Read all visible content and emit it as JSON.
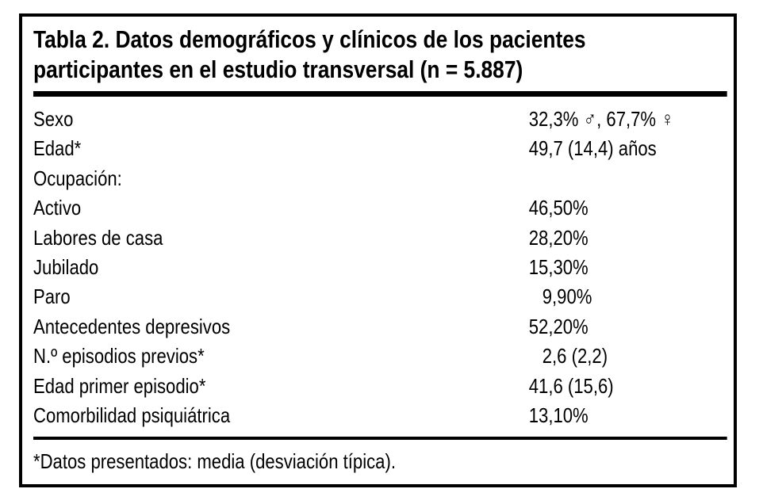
{
  "table": {
    "caption_label": "Tabla 2.",
    "title_line1": "Tabla 2. Datos demográficos y clínicos de los pacientes",
    "title_line2": "participantes en el estudio transversal (n = 5.887)",
    "sample_size": "5.887",
    "rows": [
      {
        "label": "Sexo",
        "value": "32,3% ♂, 67,7% ♀"
      },
      {
        "label": "Edad*",
        "value": "49,7 (14,4) años"
      },
      {
        "label": "Ocupación:",
        "value": ""
      },
      {
        "label": "Activo",
        "value": "46,50%"
      },
      {
        "label": "Labores de casa",
        "value": "28,20%"
      },
      {
        "label": "Jubilado",
        "value": "15,30%"
      },
      {
        "label": "Paro",
        "value": "9,90%"
      },
      {
        "label": "Antecedentes depresivos",
        "value": "52,20%"
      },
      {
        "label": "N.º episodios previos*",
        "value": "2,6 (2,2)"
      },
      {
        "label": "Edad primer episodio*",
        "value": "41,6 (15,6)"
      },
      {
        "label": "Comorbilidad psiquiátrica",
        "value": "13,10%"
      }
    ],
    "footnote": "*Datos presentados: media (desviación típica)."
  },
  "chart_data": {
    "type": "table",
    "title": "Tabla 2. Datos demográficos y clínicos de los pacientes participantes en el estudio transversal (n = 5.887)",
    "rows": [
      [
        "Sexo",
        "32,3% ♂, 67,7% ♀"
      ],
      [
        "Edad*",
        "49,7 (14,4) años"
      ],
      [
        "Ocupación:",
        ""
      ],
      [
        "Activo",
        "46,50%"
      ],
      [
        "Labores de casa",
        "28,20%"
      ],
      [
        "Jubilado",
        "15,30%"
      ],
      [
        "Paro",
        "9,90%"
      ],
      [
        "Antecedentes depresivos",
        "52,20%"
      ],
      [
        "N.º episodios previos*",
        "2,6 (2,2)"
      ],
      [
        "Edad primer episodio*",
        "41,6 (15,6)"
      ],
      [
        "Comorbilidad psiquiátrica",
        "13,10%"
      ]
    ],
    "footnote": "*Datos presentados: media (desviación típica)."
  },
  "colors": {
    "text": "#000000",
    "background": "#ffffff",
    "rule": "#000000"
  }
}
